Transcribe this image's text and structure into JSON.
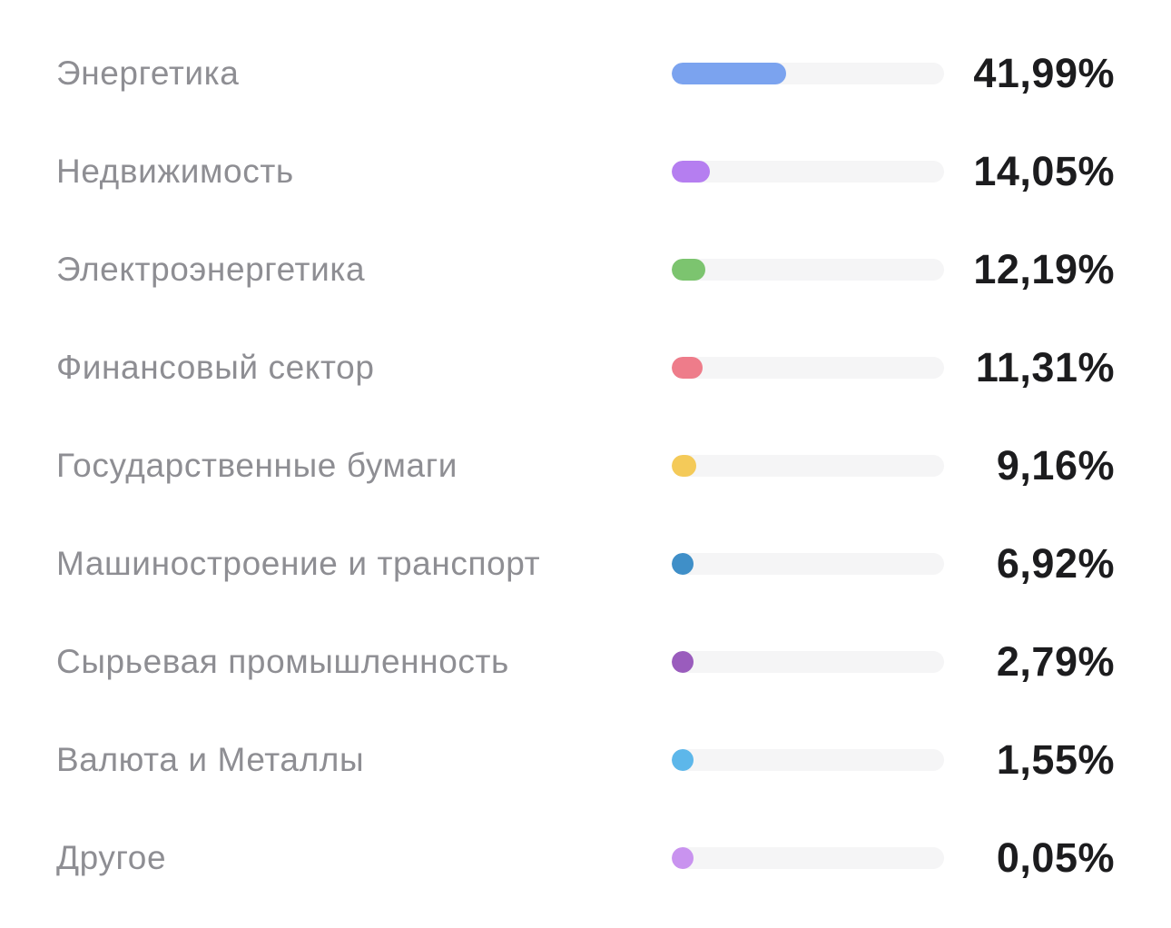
{
  "sectors": [
    {
      "label": "Энергетика",
      "value": "41,99%",
      "share": 41.99,
      "color": "#7ba3ef"
    },
    {
      "label": "Недвижимость",
      "value": "14,05%",
      "share": 14.05,
      "color": "#b57ef0"
    },
    {
      "label": "Электроэнергетика",
      "value": "12,19%",
      "share": 12.19,
      "color": "#7cc46f"
    },
    {
      "label": "Финансовый сектор",
      "value": "11,31%",
      "share": 11.31,
      "color": "#ee7c8a"
    },
    {
      "label": "Государственные бумаги",
      "value": "9,16%",
      "share": 9.16,
      "color": "#f4ca59"
    },
    {
      "label": "Машиностроение и транспорт",
      "value": "6,92%",
      "share": 6.92,
      "color": "#3f8fc8"
    },
    {
      "label": "Сырьевая промышленность",
      "value": "2,79%",
      "share": 2.79,
      "color": "#9a5cbd"
    },
    {
      "label": "Валюта и Металлы",
      "value": "1,55%",
      "share": 1.55,
      "color": "#5db7ea"
    },
    {
      "label": "Другое",
      "value": "0,05%",
      "share": 0.05,
      "color": "#c993ef"
    }
  ]
}
